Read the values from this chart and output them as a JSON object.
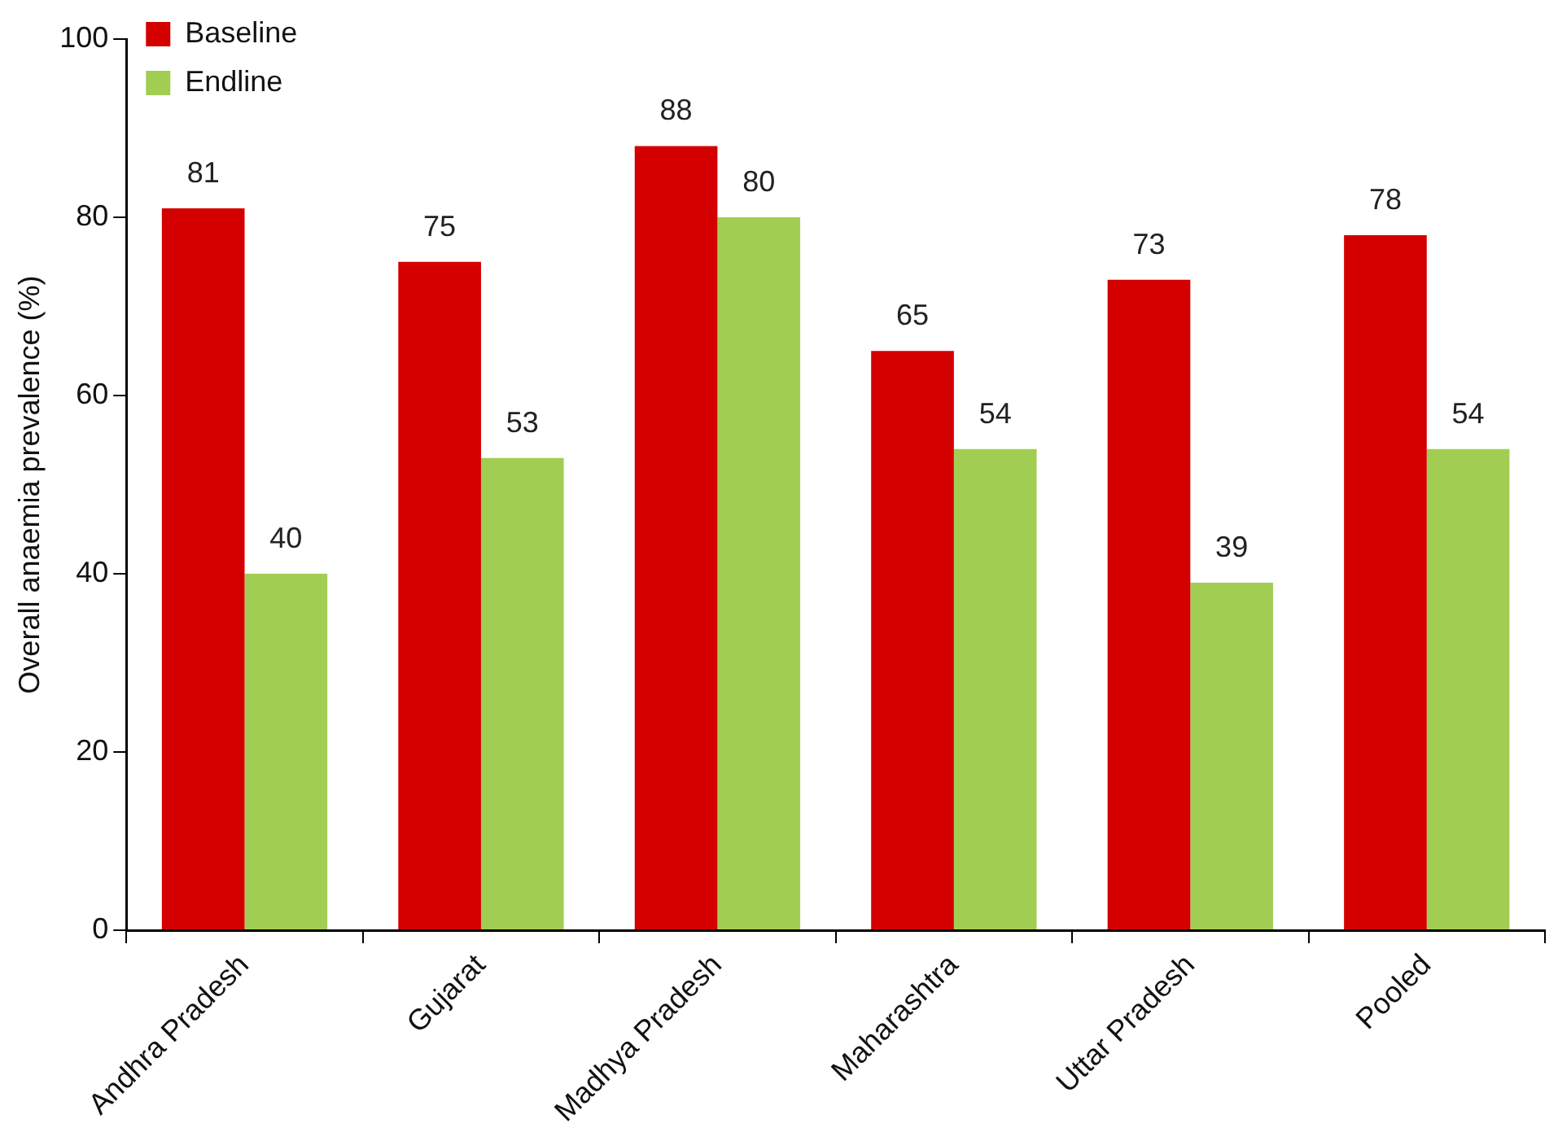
{
  "chart_data": {
    "type": "bar",
    "ylabel": "Overall anaemia prevalence (%)",
    "categories": [
      "Andhra Pradesh",
      "Gujarat",
      "Madhya Pradesh",
      "Maharashtra",
      "Uttar Pradesh",
      "Pooled"
    ],
    "series": [
      {
        "name": "Baseline",
        "color": "#d40000",
        "values": [
          81,
          75,
          88,
          65,
          73,
          78
        ]
      },
      {
        "name": "Endline",
        "color": "#a2cd53",
        "values": [
          40,
          53,
          80,
          54,
          39,
          54
        ]
      }
    ],
    "ylim": [
      0,
      100
    ],
    "yticks": [
      0,
      20,
      40,
      60,
      80,
      100
    ],
    "grid": false,
    "legend": "top left",
    "data_labels": true
  }
}
